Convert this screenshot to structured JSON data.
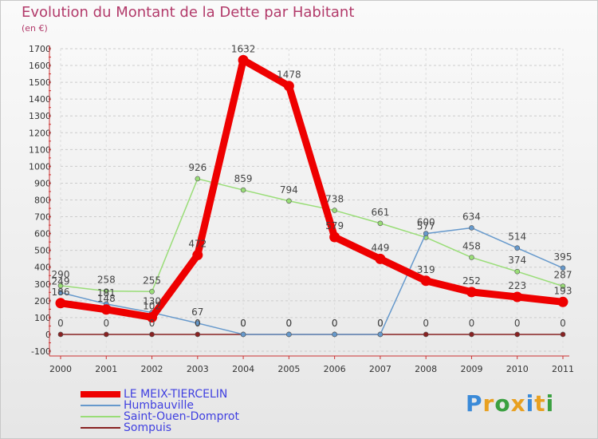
{
  "chart_data": {
    "type": "line",
    "title": "Evolution du Montant de la Dette par Habitant",
    "ylabel": "(en €)",
    "xlabel": "",
    "ylim": [
      -100,
      1700
    ],
    "ytick_step": 100,
    "categories": [
      "2000",
      "2001",
      "2002",
      "2003",
      "2004",
      "2005",
      "2006",
      "2007",
      "2008",
      "2009",
      "2010",
      "2011"
    ],
    "series": [
      {
        "name": "LE MEIX-TIERCELIN",
        "color": "#ee0000",
        "width": 9,
        "values": [
          186,
          148,
          102,
          472,
          1632,
          1478,
          579,
          449,
          319,
          252,
          223,
          193
        ]
      },
      {
        "name": "Humbauville",
        "color": "#6699cc",
        "width": 1.5,
        "values": [
          249,
          181,
          130,
          67,
          0,
          0,
          0,
          0,
          600,
          634,
          514,
          395
        ]
      },
      {
        "name": "Saint-Ouen-Domprot",
        "color": "#99dd77",
        "width": 1.5,
        "values": [
          290,
          258,
          255,
          926,
          859,
          794,
          738,
          661,
          577,
          458,
          374,
          287
        ]
      },
      {
        "name": "Sompuis",
        "color": "#882222",
        "width": 1.5,
        "values": [
          0,
          0,
          0,
          0,
          0,
          0,
          0,
          0,
          0,
          0,
          0,
          0
        ]
      }
    ],
    "legend_position": "bottom-left",
    "grid": true
  },
  "logo": {
    "letters": [
      "P",
      "r",
      "o",
      "x",
      "i",
      "t",
      "i"
    ],
    "colors": [
      "#3a8ad8",
      "#e8a020",
      "#3aa040",
      "#e8a020",
      "#3a8ad8",
      "#e8a020",
      "#3aa040"
    ]
  }
}
